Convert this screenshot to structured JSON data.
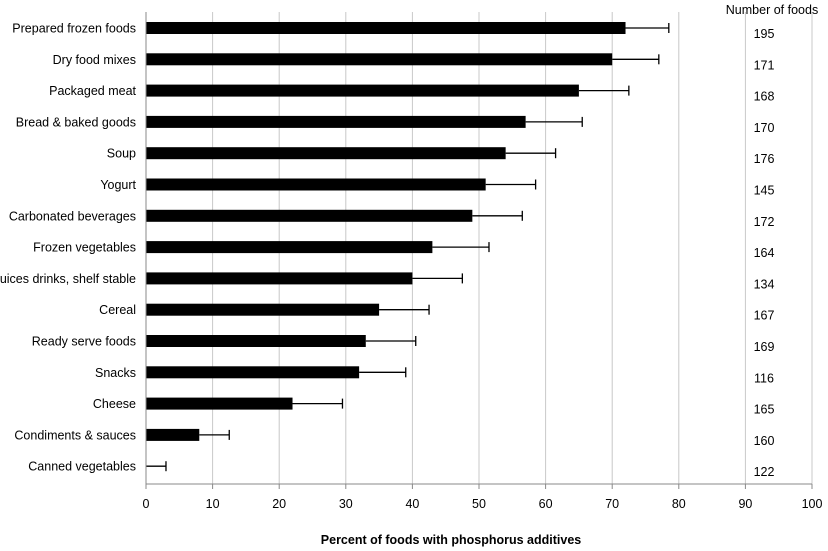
{
  "chart_data": {
    "type": "bar",
    "orientation": "horizontal",
    "xlabel": "Percent of foods with phosphorus additives",
    "xlim": [
      0,
      100
    ],
    "xticks": [
      0,
      10,
      20,
      30,
      40,
      50,
      60,
      70,
      80,
      90,
      100
    ],
    "grid": "vertical",
    "side_column_title": "Number of foods",
    "bar_color": "#000000",
    "categories": [
      "Prepared frozen foods",
      "Dry food mixes",
      "Packaged meat",
      "Bread & baked goods",
      "Soup",
      "Yogurt",
      "Carbonated beverages",
      "Frozen vegetables",
      "Juices drinks, shelf stable",
      "Cereal",
      "Ready serve foods",
      "Snacks",
      "Cheese",
      "Condiments & sauces",
      "Canned vegetables"
    ],
    "values": [
      72,
      70,
      65,
      57,
      54,
      51,
      49,
      43,
      40,
      35,
      33,
      32,
      22,
      8,
      0
    ],
    "error_upper": [
      78.5,
      77,
      72.5,
      65.5,
      61.5,
      58.5,
      56.5,
      51.5,
      47.5,
      42.5,
      40.5,
      39,
      29.5,
      12.5,
      3
    ],
    "counts": [
      "195",
      "171",
      "168",
      "170",
      "176",
      "145",
      "172",
      "164",
      "134",
      "167",
      "169",
      "116",
      "165",
      "160",
      "122"
    ]
  }
}
